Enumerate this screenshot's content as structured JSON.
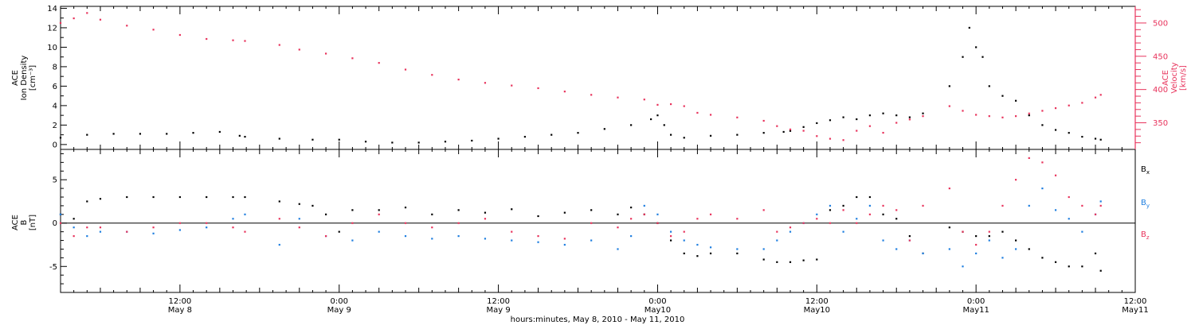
{
  "colors": {
    "black": "#000000",
    "pink": "#e8335c",
    "blue": "#1f7fe0"
  },
  "xlabel": "hours:minutes, May  8, 2010 - May 11, 2010",
  "x_ticks": [
    {
      "time": "12:00",
      "day": "May 8",
      "h": 12
    },
    {
      "time": "0:00",
      "day": "May 9",
      "h": 24
    },
    {
      "time": "12:00",
      "day": "May 9",
      "h": 36
    },
    {
      "time": "0:00",
      "day": "May10",
      "h": 48
    },
    {
      "time": "12:00",
      "day": "May10",
      "h": 60
    },
    {
      "time": "0:00",
      "day": "May11",
      "h": 72
    },
    {
      "time": "12:00",
      "day": "May11",
      "h": 84
    }
  ],
  "chart_data": [
    {
      "type": "scatter",
      "panel": "top",
      "x_unit": "hours since 2010-05-08 00:00 UT",
      "xlim": [
        3,
        84
      ],
      "grid": false,
      "ylabel_left": [
        "ACE",
        "Ion Density",
        "[cm⁻³]"
      ],
      "ylim_left": [
        -0.5,
        14.2
      ],
      "yticks_left": [
        0,
        2,
        4,
        6,
        8,
        10,
        12,
        14
      ],
      "ylabel_right": [
        "ACE",
        "Velocity",
        "[km/s]"
      ],
      "ylim_right": [
        310,
        525
      ],
      "yticks_right": [
        350,
        400,
        450,
        500
      ],
      "series": [
        {
          "name": "Ion Density",
          "axis": "left",
          "color": "black",
          "x": [
            3,
            5,
            7,
            9,
            11,
            13,
            15,
            16.5,
            16.9,
            19.5,
            22,
            24,
            26,
            28,
            30,
            32,
            34,
            36,
            38,
            40,
            42,
            44,
            46,
            47.5,
            48,
            48.5,
            49,
            50,
            52,
            54,
            56,
            57.5,
            58,
            59,
            60,
            61,
            62,
            63,
            64,
            65,
            66,
            67,
            68,
            70,
            71,
            71.5,
            72,
            72.5,
            73,
            74,
            75,
            76,
            77,
            78,
            79,
            80,
            81,
            81.4
          ],
          "y": [
            0.7,
            1.0,
            1.1,
            1.1,
            1.1,
            1.2,
            1.3,
            0.9,
            0.8,
            0.6,
            0.5,
            0.5,
            0.3,
            0.2,
            0.2,
            0.3,
            0.4,
            0.6,
            0.8,
            1.0,
            1.2,
            1.6,
            2.0,
            2.6,
            3.0,
            2.0,
            1.0,
            0.7,
            0.9,
            1.0,
            1.2,
            1.3,
            1.4,
            1.8,
            2.2,
            2.5,
            2.8,
            2.6,
            3.0,
            3.2,
            3.0,
            2.8,
            3.2,
            6.0,
            9.0,
            12.0,
            10.0,
            9.0,
            6.0,
            5.0,
            4.5,
            3.0,
            2.0,
            1.5,
            1.2,
            0.8,
            0.6,
            0.5
          ]
        },
        {
          "name": "Velocity",
          "axis": "right",
          "color": "pink",
          "x": [
            3,
            4,
            5,
            6,
            8,
            10,
            12,
            14,
            16,
            16.9,
            19.5,
            21,
            23,
            25,
            27,
            29,
            31,
            33,
            35,
            37,
            39,
            41,
            43,
            45,
            47,
            48,
            49,
            50,
            51,
            52,
            54,
            56,
            57,
            58,
            59,
            60,
            61,
            62,
            63,
            64,
            65,
            66,
            67,
            68,
            70,
            71,
            72,
            73,
            74,
            75,
            76,
            77,
            78,
            79,
            80,
            81,
            81.4
          ],
          "y": [
            500,
            507,
            515,
            505,
            496,
            490,
            482,
            476,
            474,
            473,
            467,
            460,
            454,
            447,
            440,
            430,
            422,
            415,
            410,
            406,
            402,
            397,
            392,
            388,
            385,
            377,
            378,
            375,
            365,
            362,
            358,
            353,
            345,
            340,
            338,
            330,
            326,
            324,
            338,
            345,
            335,
            350,
            355,
            360,
            375,
            368,
            362,
            360,
            358,
            360,
            364,
            368,
            372,
            376,
            380,
            388,
            392
          ]
        }
      ]
    },
    {
      "type": "scatter",
      "panel": "bottom",
      "x_unit": "hours since 2010-05-08 00:00 UT",
      "xlim": [
        3,
        84
      ],
      "grid": false,
      "ylabel": [
        "ACE",
        "B",
        "[nT]"
      ],
      "ylim": [
        -8,
        8.5
      ],
      "yticks": [
        -5,
        0,
        5
      ],
      "zero_line": true,
      "series": [
        {
          "name": "B",
          "subscript": "x",
          "color": "black",
          "x": [
            3,
            4,
            5,
            6,
            8,
            10,
            12,
            14,
            16,
            16.9,
            19.5,
            21,
            22,
            23,
            24,
            25,
            27,
            29,
            31,
            33,
            35,
            37,
            39,
            41,
            43,
            45,
            46,
            47,
            48,
            49,
            50,
            51,
            52,
            54,
            56,
            57,
            58,
            59,
            60,
            61,
            62,
            63,
            64,
            65,
            66,
            67,
            68,
            70,
            71,
            72,
            73,
            74,
            75,
            76,
            77,
            78,
            79,
            80,
            81,
            81.4
          ],
          "y": [
            1.0,
            0.5,
            2.5,
            2.8,
            3.0,
            3.0,
            3.0,
            3.0,
            3.0,
            3.0,
            2.5,
            2.2,
            2.0,
            1.0,
            -1.0,
            1.5,
            1.5,
            1.8,
            1.0,
            1.5,
            1.2,
            1.6,
            0.8,
            1.2,
            1.5,
            1.0,
            1.8,
            1.0,
            0,
            -2.0,
            -3.5,
            -3.8,
            -3.5,
            -3.5,
            -4.2,
            -4.5,
            -4.5,
            -4.3,
            -4.2,
            1.5,
            2.0,
            3.0,
            3.0,
            1.0,
            0.5,
            -1.5,
            -3.5,
            -0.5,
            -1.0,
            -1.5,
            -1.5,
            -1.0,
            -2.0,
            -3.0,
            -4.0,
            -4.5,
            -5.0,
            -5.0,
            -3.5,
            -5.5
          ]
        },
        {
          "name": "B",
          "subscript": "y",
          "color": "blue",
          "x": [
            3,
            4,
            5,
            6,
            8,
            10,
            12,
            14,
            16,
            16.9,
            19.5,
            21,
            23,
            25,
            27,
            29,
            31,
            33,
            35,
            37,
            39,
            41,
            43,
            45,
            46,
            47,
            48,
            49,
            50,
            51,
            52,
            54,
            56,
            57,
            58,
            59,
            60,
            61,
            62,
            63,
            64,
            65,
            66,
            67,
            68,
            70,
            71,
            72,
            73,
            74,
            75,
            76,
            77,
            78,
            79,
            80,
            81,
            81.4
          ],
          "y": [
            1.0,
            -0.5,
            -1.5,
            -1.0,
            -1.0,
            -1.2,
            -0.8,
            -0.5,
            0.5,
            1.0,
            -2.5,
            0.5,
            -1.5,
            -2.0,
            -1.0,
            -1.5,
            -1.8,
            -1.5,
            -1.8,
            -2.0,
            -2.2,
            -2.5,
            -2.0,
            -3.0,
            -1.5,
            2.0,
            1.0,
            -1.0,
            -2.0,
            -2.5,
            -2.8,
            -3.0,
            -3.0,
            -2.0,
            -1.0,
            0,
            1.0,
            2.0,
            -1.0,
            0.5,
            2.0,
            -2.0,
            -3.0,
            -2.0,
            -3.5,
            -3.0,
            -5.0,
            -3.5,
            -2.0,
            -4.0,
            -3.0,
            2.0,
            4.0,
            1.5,
            0.5,
            -1.0,
            1.0,
            2.5
          ]
        },
        {
          "name": "B",
          "subscript": "z",
          "color": "pink",
          "x": [
            3,
            4,
            5,
            6,
            8,
            10,
            12,
            14,
            16,
            16.9,
            19.5,
            21,
            23,
            25,
            27,
            29,
            31,
            33,
            35,
            37,
            39,
            41,
            43,
            45,
            46,
            47,
            48,
            49,
            50,
            51,
            52,
            54,
            56,
            57,
            58,
            59,
            60,
            61,
            62,
            63,
            64,
            65,
            66,
            67,
            68,
            70,
            71,
            72,
            73,
            74,
            75,
            76,
            77,
            78,
            79,
            80,
            81,
            81.4
          ],
          "y": [
            0,
            -1.5,
            -0.5,
            -0.5,
            -1.0,
            -0.5,
            0,
            0,
            -0.5,
            -1.0,
            0.5,
            -0.5,
            -1.5,
            0,
            1.0,
            0,
            -0.5,
            0,
            0.5,
            -1.0,
            -1.5,
            -1.8,
            0,
            -0.5,
            0.5,
            1.0,
            0,
            -1.5,
            -1.0,
            0.5,
            1.0,
            0.5,
            1.5,
            -1.0,
            -0.5,
            0,
            0.5,
            0,
            1.5,
            0,
            1.0,
            2.0,
            1.5,
            -2.0,
            2.0,
            4.0,
            -1.0,
            -2.5,
            -1.0,
            2.0,
            5.0,
            7.5,
            7.0,
            5.5,
            3.0,
            2.0,
            1.0,
            2.0
          ]
        }
      ]
    }
  ]
}
